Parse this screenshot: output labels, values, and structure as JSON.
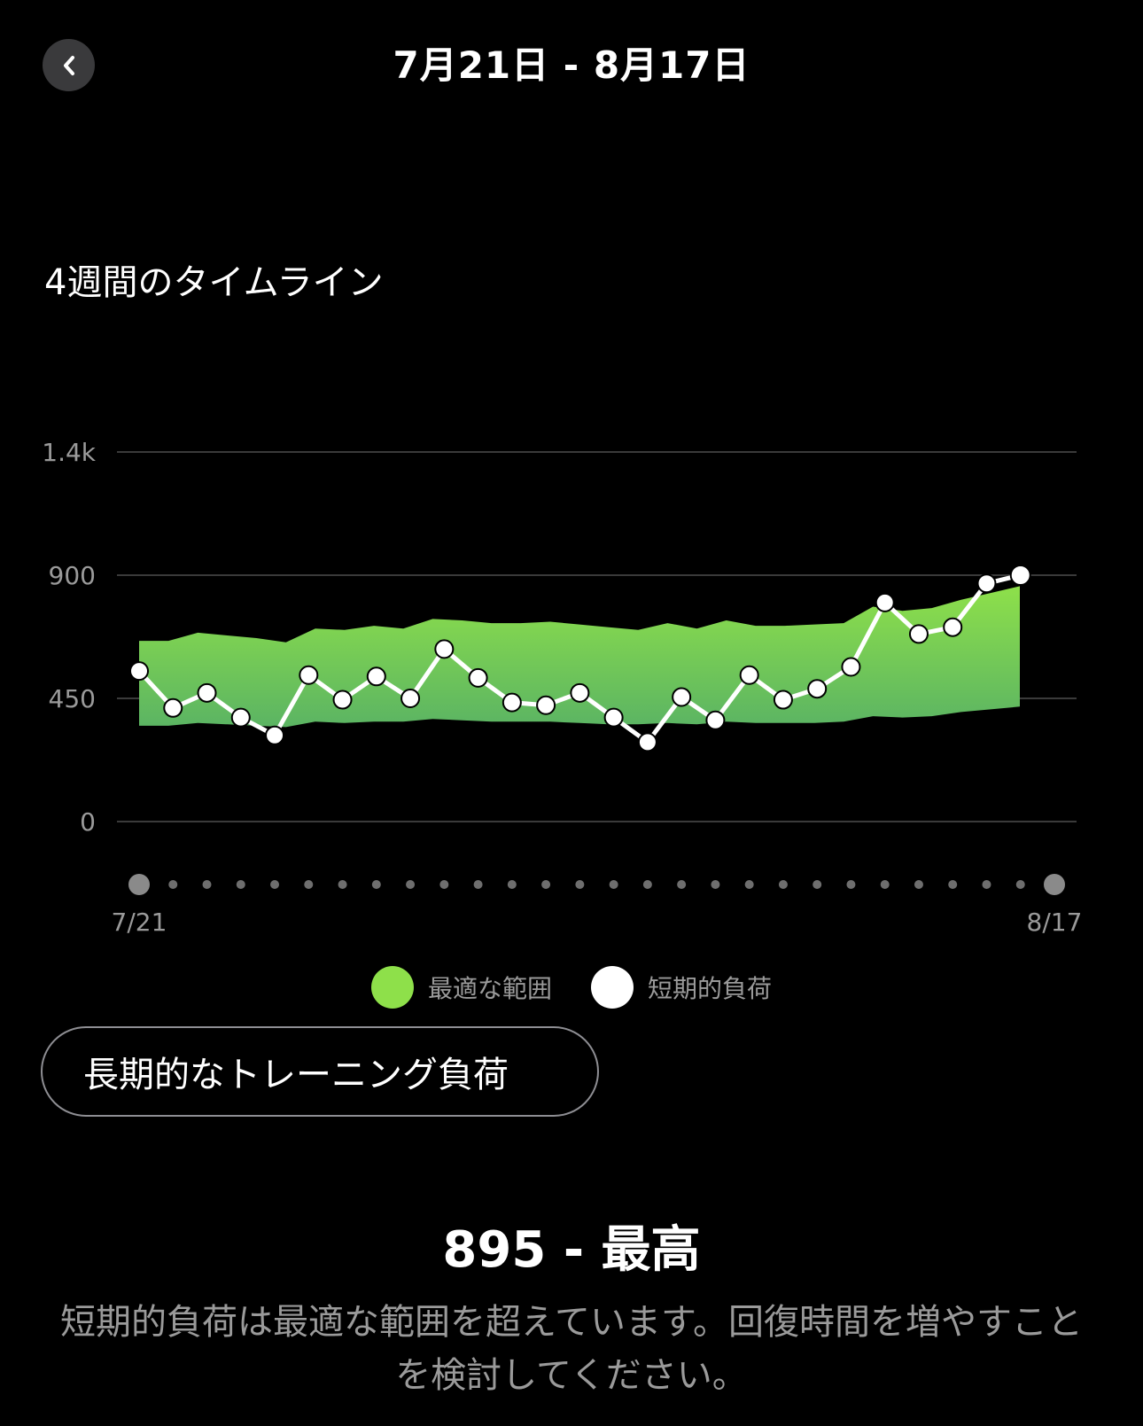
{
  "header": {
    "title": "7月21日 - 8月17日",
    "back_icon": "chevron-left-icon"
  },
  "section": {
    "title": "4週間のタイムライン"
  },
  "chart_data": {
    "type": "line",
    "title": "",
    "xlabel": "",
    "ylabel": "",
    "ylim": [
      0,
      1350
    ],
    "y_ticks": [
      {
        "value": 0,
        "label": "0"
      },
      {
        "value": 450,
        "label": "450"
      },
      {
        "value": 900,
        "label": "900"
      },
      {
        "value": 1350,
        "label": "1.4k"
      }
    ],
    "x_start_label": "7/21",
    "x_end_label": "8/17",
    "grid": true,
    "legend_position": "bottom",
    "colors": {
      "range_top": "#8ee04a",
      "range_bottom": "#5bb463",
      "line": "#ffffff",
      "grid": "#3a3a3a",
      "axis_text": "#9a9a9a"
    },
    "series": [
      {
        "name": "最適な範囲",
        "kind": "band",
        "upper": [
          660,
          660,
          690,
          680,
          670,
          655,
          705,
          700,
          715,
          705,
          740,
          735,
          725,
          725,
          730,
          720,
          710,
          700,
          725,
          705,
          735,
          715,
          715,
          720,
          725,
          785,
          770,
          780,
          810,
          835,
          860
        ],
        "lower": [
          350,
          350,
          360,
          355,
          350,
          345,
          365,
          360,
          365,
          365,
          375,
          370,
          365,
          365,
          365,
          360,
          355,
          355,
          360,
          355,
          365,
          360,
          360,
          360,
          365,
          385,
          380,
          385,
          400,
          410,
          420
        ]
      },
      {
        "name": "短期的負荷",
        "kind": "line",
        "values": [
          550,
          415,
          470,
          380,
          315,
          535,
          445,
          530,
          450,
          630,
          525,
          435,
          425,
          470,
          380,
          290,
          455,
          370,
          535,
          445,
          485,
          565,
          800,
          685,
          710,
          870,
          900
        ]
      }
    ]
  },
  "legend": [
    {
      "label": "最適な範囲",
      "color": "#8ee04a"
    },
    {
      "label": "短期的負荷",
      "color": "#ffffff"
    }
  ],
  "toggle": {
    "label": "長期的なトレーニング負荷"
  },
  "summary": {
    "value_line": "895 - 最高",
    "description": "短期的負荷は最適な範囲を超えています。回復時間を増やすことを検討してください。"
  }
}
